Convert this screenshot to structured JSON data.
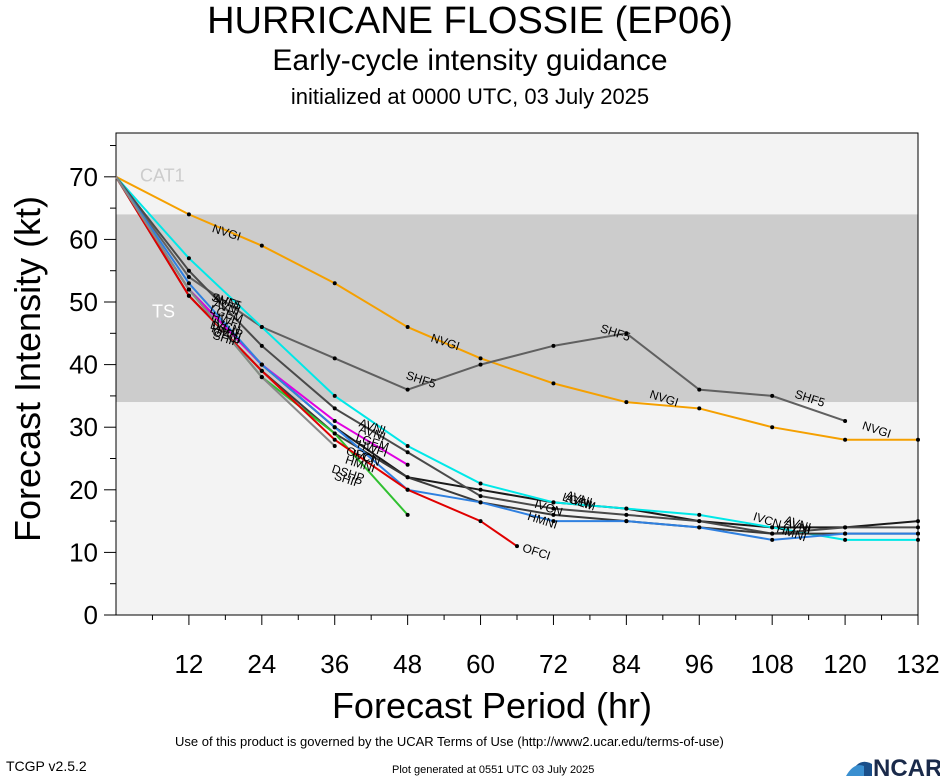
{
  "header": {
    "title": "HURRICANE FLOSSIE (EP06)",
    "subtitle": "Early-cycle intensity guidance",
    "init_line": "initialized at 0000 UTC, 03 July 2025"
  },
  "footer": {
    "terms": "Use of this product is governed by the UCAR Terms of Use (http://www2.ucar.edu/terms-of-use)",
    "version": "TCGP v2.5.2",
    "generated": "Plot generated at 0551 UTC   03 July 2025",
    "logo_text": "NCAR"
  },
  "chart_data": {
    "type": "line",
    "xlabel": "Forecast Period (hr)",
    "ylabel": "Forecast Intensity (kt)",
    "xlim": [
      0,
      132
    ],
    "ylim": [
      0,
      77
    ],
    "xticks": [
      12,
      24,
      36,
      48,
      60,
      72,
      84,
      96,
      108,
      120,
      132
    ],
    "yticks": [
      0,
      10,
      20,
      30,
      40,
      50,
      60,
      70
    ],
    "bands": [
      {
        "label": "CAT1",
        "from": 64,
        "to": 77,
        "color": "#f3f3f3",
        "text_color": "#cccccc"
      },
      {
        "label": "TS",
        "from": 34,
        "to": 64,
        "color": "#cccccc",
        "text_color": "#ffffff"
      },
      {
        "label": "",
        "from": 0,
        "to": 34,
        "color": "#f3f3f3",
        "text_color": "#cccccc"
      }
    ],
    "series": [
      {
        "name": "NVGI",
        "color": "#f5a000",
        "x": [
          0,
          12,
          24,
          36,
          48,
          60,
          72,
          84,
          96,
          108,
          120,
          132
        ],
        "y": [
          70,
          64,
          59,
          53,
          46,
          41,
          37,
          34,
          33,
          30,
          28,
          28
        ],
        "labels": [
          {
            "x": 18,
            "y": 60.5
          },
          {
            "x": 54,
            "y": 43
          },
          {
            "x": 90,
            "y": 34
          },
          {
            "x": 125,
            "y": 29
          }
        ]
      },
      {
        "name": "SHF5",
        "color": "#606060",
        "x": [
          0,
          12,
          24,
          36,
          48,
          60,
          72,
          84,
          96,
          108,
          120
        ],
        "y": [
          70,
          54,
          46,
          41,
          36,
          40,
          43,
          45,
          36,
          35,
          31
        ],
        "labels": [
          {
            "x": 18,
            "y": 49.5
          },
          {
            "x": 50,
            "y": 37
          },
          {
            "x": 82,
            "y": 44.5
          },
          {
            "x": 114,
            "y": 34
          }
        ]
      },
      {
        "name": "AVNI",
        "color": "#1a1a1a",
        "x": [
          0,
          12,
          24,
          36,
          48,
          60,
          72,
          84,
          96,
          108,
          120,
          132
        ],
        "y": [
          70,
          52,
          40,
          30,
          22,
          20,
          18,
          17,
          15,
          14,
          14,
          15
        ],
        "labels": [
          {
            "x": 18,
            "y": 49.5
          },
          {
            "x": 42,
            "y": 29.5
          },
          {
            "x": 76,
            "y": 18
          },
          {
            "x": 112,
            "y": 14
          }
        ]
      },
      {
        "name": "AVNI",
        "color": "#00e8e8",
        "x": [
          0,
          12,
          24,
          36,
          48,
          60,
          72,
          84,
          96,
          108,
          120,
          132
        ],
        "y": [
          70,
          57,
          46,
          35,
          27,
          21,
          18,
          17,
          16,
          14,
          12,
          12
        ],
        "labels": [
          {
            "x": 18,
            "y": 48.5
          },
          {
            "x": 42,
            "y": 28.5
          },
          {
            "x": 76,
            "y": 17.5
          },
          {
            "x": 112,
            "y": 13.5
          }
        ]
      },
      {
        "name": "LGEM",
        "color": "#4a4a4a",
        "x": [
          0,
          12,
          24,
          36,
          48,
          60,
          72,
          84,
          96,
          108,
          120,
          132
        ],
        "y": [
          70,
          55,
          43,
          33,
          26,
          19,
          17,
          16,
          15,
          13,
          14,
          14
        ],
        "labels": [
          {
            "x": 18,
            "y": 47.5
          },
          {
            "x": 42,
            "y": 27
          },
          {
            "x": 76,
            "y": 17.5
          }
        ]
      },
      {
        "name": "HWFI",
        "color": "#e000e0",
        "x": [
          0,
          12,
          24,
          36,
          48
        ],
        "y": [
          70,
          52,
          40,
          31,
          24
        ],
        "labels": [
          {
            "x": 18,
            "y": 46.5
          },
          {
            "x": 42,
            "y": 26
          }
        ]
      },
      {
        "name": "IVCN",
        "color": "#3a3a3a",
        "x": [
          0,
          12,
          24,
          36,
          48,
          60,
          72,
          84,
          96,
          108,
          120,
          132
        ],
        "y": [
          70,
          51,
          39,
          29,
          22,
          18,
          16,
          15,
          14,
          13,
          13,
          13
        ],
        "labels": [
          {
            "x": 18,
            "y": 45.5
          },
          {
            "x": 41,
            "y": 24.5
          },
          {
            "x": 71,
            "y": 16.5
          },
          {
            "x": 107,
            "y": 14.5
          }
        ]
      },
      {
        "name": "HMNI",
        "color": "#2f80e0",
        "x": [
          0,
          12,
          24,
          36,
          48,
          60,
          72,
          84,
          96,
          108,
          120,
          132
        ],
        "y": [
          70,
          53,
          40,
          30,
          20,
          18,
          15,
          15,
          14,
          12,
          13,
          13
        ],
        "labels": [
          {
            "x": 18,
            "y": 44.5
          },
          {
            "x": 40,
            "y": 23.5
          },
          {
            "x": 70,
            "y": 14.5
          },
          {
            "x": 111,
            "y": 12.5
          }
        ]
      },
      {
        "name": "DSHP",
        "color": "#30c030",
        "x": [
          0,
          12,
          24,
          36,
          48
        ],
        "y": [
          70,
          52,
          38,
          29,
          16
        ],
        "labels": [
          {
            "x": 18,
            "y": 45
          },
          {
            "x": 38,
            "y": 22
          }
        ]
      },
      {
        "name": "OFCI",
        "color": "#e00000",
        "x": [
          0,
          12,
          24,
          36,
          48,
          60,
          66
        ],
        "y": [
          70,
          51,
          39,
          28,
          20,
          15,
          11
        ],
        "labels": [
          {
            "x": 18,
            "y": 44
          },
          {
            "x": 40,
            "y": 25
          },
          {
            "x": 69,
            "y": 9.5
          }
        ]
      },
      {
        "name": "SHIP",
        "color": "#888888",
        "x": [
          0,
          12,
          24,
          36
        ],
        "y": [
          70,
          52,
          38,
          27
        ],
        "labels": [
          {
            "x": 18,
            "y": 43.5
          },
          {
            "x": 38,
            "y": 21
          }
        ]
      }
    ]
  }
}
